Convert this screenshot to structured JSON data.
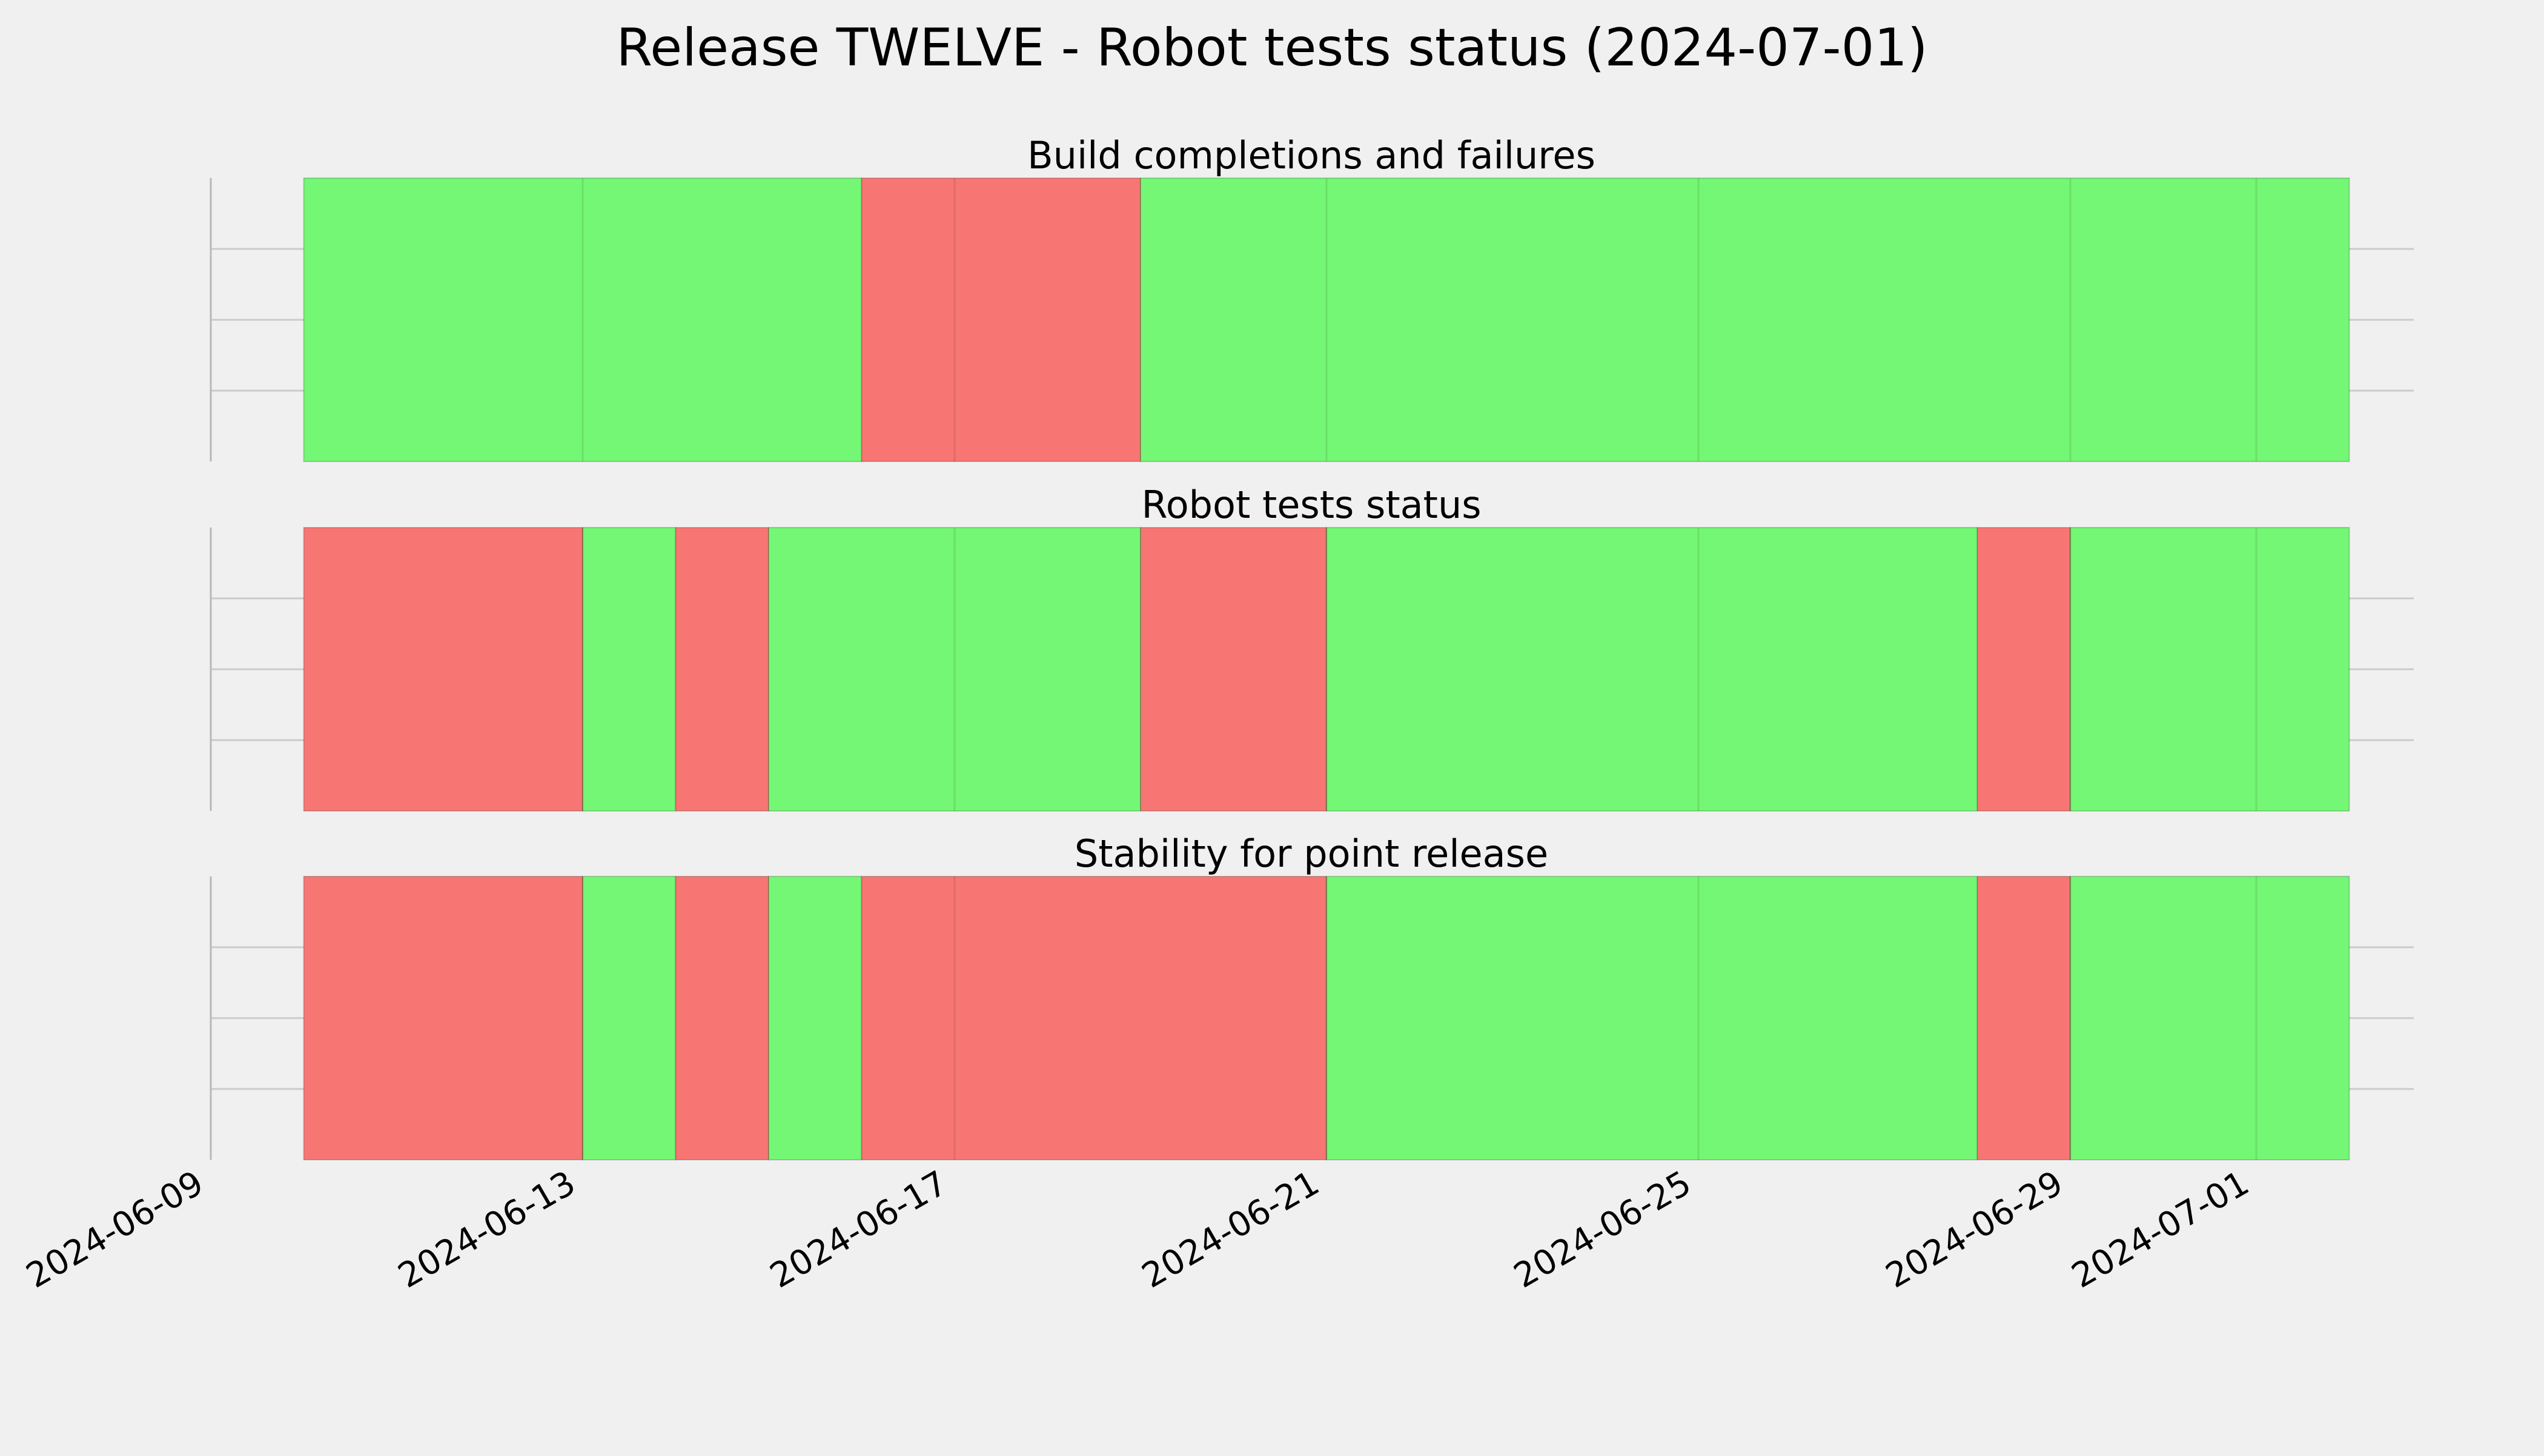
{
  "chart_data": {
    "type": "timeline",
    "title": "Release TWELVE - Robot tests status (2024-07-01)",
    "x_range": [
      "2024-06-09",
      "2024-07-03"
    ],
    "x_ticks": [
      "2024-06-09",
      "2024-06-13",
      "2024-06-17",
      "2024-06-21",
      "2024-06-25",
      "2024-06-29",
      "2024-07-01"
    ],
    "grid": true,
    "colors": {
      "pass": "#74f774",
      "fail": "#f77674",
      "background": "#f0f0f0",
      "grid": "#cbcbcb"
    },
    "panels": [
      {
        "title": "Build completions and failures",
        "segments": [
          {
            "start": "2024-06-10",
            "end": "2024-06-16",
            "status": "pass"
          },
          {
            "start": "2024-06-16",
            "end": "2024-06-19",
            "status": "fail"
          },
          {
            "start": "2024-06-19",
            "end": "2024-07-02",
            "status": "pass"
          }
        ]
      },
      {
        "title": "Robot tests status",
        "segments": [
          {
            "start": "2024-06-10",
            "end": "2024-06-13",
            "status": "fail"
          },
          {
            "start": "2024-06-13",
            "end": "2024-06-14",
            "status": "pass"
          },
          {
            "start": "2024-06-14",
            "end": "2024-06-15",
            "status": "fail"
          },
          {
            "start": "2024-06-15",
            "end": "2024-06-19",
            "status": "pass"
          },
          {
            "start": "2024-06-19",
            "end": "2024-06-21",
            "status": "fail"
          },
          {
            "start": "2024-06-21",
            "end": "2024-06-28",
            "status": "pass"
          },
          {
            "start": "2024-06-28",
            "end": "2024-06-29",
            "status": "fail"
          },
          {
            "start": "2024-06-29",
            "end": "2024-07-02",
            "status": "pass"
          }
        ]
      },
      {
        "title": "Stability for point release",
        "segments": [
          {
            "start": "2024-06-10",
            "end": "2024-06-13",
            "status": "fail"
          },
          {
            "start": "2024-06-13",
            "end": "2024-06-14",
            "status": "pass"
          },
          {
            "start": "2024-06-14",
            "end": "2024-06-15",
            "status": "fail"
          },
          {
            "start": "2024-06-15",
            "end": "2024-06-16",
            "status": "pass"
          },
          {
            "start": "2024-06-16",
            "end": "2024-06-21",
            "status": "fail"
          },
          {
            "start": "2024-06-21",
            "end": "2024-06-28",
            "status": "pass"
          },
          {
            "start": "2024-06-28",
            "end": "2024-06-29",
            "status": "fail"
          },
          {
            "start": "2024-06-29",
            "end": "2024-07-02",
            "status": "pass"
          }
        ]
      }
    ]
  }
}
